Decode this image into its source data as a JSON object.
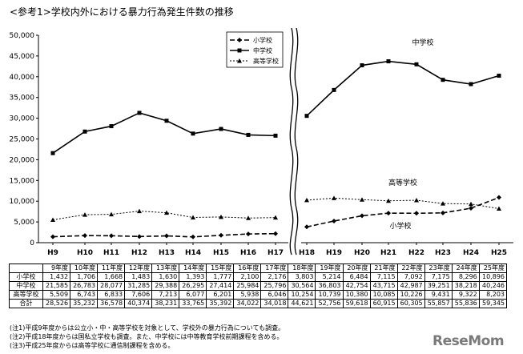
{
  "title": "<参考1>学校内外における暴力行為発生件数の推移",
  "chart_data": {
    "type": "line",
    "title": "<参考1>学校内外における暴力行為発生件数の推移",
    "categories": [
      "H9",
      "H10",
      "H11",
      "H12",
      "H13",
      "H14",
      "H15",
      "H16",
      "H17",
      "H18",
      "H19",
      "H20",
      "H21",
      "H22",
      "H23",
      "H24",
      "H25"
    ],
    "ylim": [
      0,
      50000
    ],
    "yticks": [
      "0",
      "5,000",
      "10,000",
      "15,000",
      "20,000",
      "25,000",
      "30,000",
      "35,000",
      "40,000",
      "45,000",
      "50,000"
    ],
    "axis_break_between": [
      "H17",
      "H18"
    ],
    "legend_position": "top-center",
    "series": [
      {
        "name": "小学校",
        "values": [
          1432,
          1706,
          1668,
          1483,
          1630,
          1393,
          1777,
          2100,
          2176,
          3803,
          5214,
          6484,
          7115,
          7092,
          7175,
          8296,
          10896
        ]
      },
      {
        "name": "中学校",
        "values": [
          21585,
          26783,
          28077,
          31285,
          29388,
          26295,
          27414,
          25984,
          25796,
          30564,
          36803,
          42754,
          43715,
          42987,
          39251,
          38218,
          40246
        ]
      },
      {
        "name": "高等学校",
        "values": [
          5509,
          6743,
          6833,
          7606,
          7213,
          6077,
          6201,
          5938,
          6046,
          10254,
          10739,
          10380,
          10085,
          10226,
          9431,
          9322,
          8203
        ]
      }
    ],
    "annotations": [
      "中学校",
      "高等学校",
      "小学校"
    ]
  },
  "table": {
    "headers": [
      "9年度",
      "10年度",
      "11年度",
      "12年度",
      "13年度",
      "14年度",
      "15年度",
      "16年度",
      "17年度",
      "18年度",
      "19年度",
      "20年度",
      "21年度",
      "22年度",
      "23年度",
      "24年度",
      "25年度"
    ],
    "rows": [
      {
        "label": "小学校",
        "values": [
          "1,432",
          "1,706",
          "1,668",
          "1,483",
          "1,630",
          "1,393",
          "1,777",
          "2,100",
          "2,176",
          "3,803",
          "5,214",
          "6,484",
          "7,115",
          "7,092",
          "7,175",
          "8,296",
          "10,896"
        ]
      },
      {
        "label": "中学校",
        "values": [
          "21,585",
          "26,783",
          "28,077",
          "31,285",
          "29,388",
          "26,295",
          "27,414",
          "25,984",
          "25,796",
          "30,564",
          "36,803",
          "42,754",
          "43,715",
          "42,987",
          "39,251",
          "38,218",
          "40,246"
        ]
      },
      {
        "label": "高等学校",
        "values": [
          "5,509",
          "6,743",
          "6,833",
          "7,606",
          "7,213",
          "6,077",
          "6,201",
          "5,938",
          "6,046",
          "10,254",
          "10,739",
          "10,380",
          "10,085",
          "10,226",
          "9,431",
          "9,322",
          "8,203"
        ]
      },
      {
        "label": "合計",
        "values": [
          "28,526",
          "35,232",
          "36,578",
          "40,374",
          "38,231",
          "33,765",
          "35,392",
          "34,022",
          "34,018",
          "44,621",
          "52,756",
          "59,618",
          "60,915",
          "60,305",
          "55,857",
          "55,836",
          "59,345"
        ]
      }
    ]
  },
  "notes": [
    "(注1)平成9年度からは公立小・中・高等学校を対象として、学校外の暴力行為についても調査。",
    "(注2)平成18年度からは国私立学校も調査。また、中学校には中等教育学校前期課程を含める。",
    "(注3)平成25年度からは高等学校に通信制課程を含める。"
  ],
  "brand": {
    "text": "ReseMom",
    "color": "#7a7a7a"
  }
}
